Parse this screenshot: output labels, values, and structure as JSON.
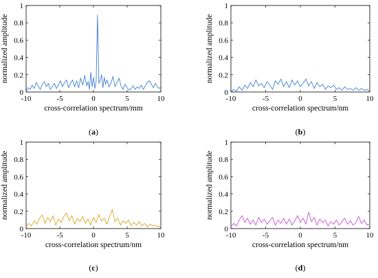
{
  "chart_data": [
    {
      "type": "line",
      "panel_label": {
        "open": "(",
        "letter": "a",
        "close": ")"
      },
      "xlabel": "cross-correlation spectrum/mm",
      "ylabel": "normalized amplitude",
      "xlim": [
        -10,
        10
      ],
      "ylim": [
        0,
        1
      ],
      "xticks": [
        -10,
        -5,
        0,
        5,
        10
      ],
      "xtick_labels": [
        "-10",
        "-5",
        "0",
        "5",
        "10"
      ],
      "yticks": [
        0,
        0.2,
        0.4,
        0.6,
        0.8,
        1
      ],
      "ytick_labels": [
        "0",
        "0.2",
        "0.4",
        "0.6",
        "0.8",
        "1"
      ],
      "grid": false,
      "color": "#3d7fd4",
      "series": [
        {
          "x": [
            -10,
            -9.7,
            -9.4,
            -9.1,
            -8.8,
            -8.5,
            -8.2,
            -7.9,
            -7.6,
            -7.3,
            -7.0,
            -6.7,
            -6.4,
            -6.1,
            -5.8,
            -5.5,
            -5.2,
            -4.9,
            -4.6,
            -4.3,
            -4.0,
            -3.7,
            -3.4,
            -3.1,
            -2.8,
            -2.5,
            -2.2,
            -1.9,
            -1.6,
            -1.3,
            -1.0,
            -0.8,
            -0.6,
            -0.4,
            -0.2,
            0.0,
            0.2,
            0.4,
            0.6,
            0.8,
            1.0,
            1.2,
            1.4,
            1.6,
            1.8,
            2.0,
            2.3,
            2.6,
            2.9,
            3.2,
            3.5,
            3.8,
            4.1,
            4.4,
            4.7,
            5.0,
            5.3,
            5.6,
            5.9,
            6.2,
            6.5,
            6.8,
            7.1,
            7.4,
            7.7,
            8.0,
            8.3,
            8.6,
            8.9,
            9.2,
            9.5,
            9.8,
            10.0
          ],
          "y": [
            0.01,
            0.05,
            0.03,
            0.08,
            0.04,
            0.11,
            0.07,
            0.03,
            0.09,
            0.12,
            0.06,
            0.1,
            0.03,
            0.06,
            0.1,
            0.04,
            0.08,
            0.13,
            0.06,
            0.11,
            0.14,
            0.05,
            0.1,
            0.14,
            0.06,
            0.13,
            0.05,
            0.16,
            0.08,
            0.19,
            0.07,
            0.12,
            0.03,
            0.23,
            0.06,
            0.17,
            0.04,
            0.13,
            0.89,
            0.1,
            0.14,
            0.2,
            0.05,
            0.17,
            0.09,
            0.14,
            0.06,
            0.1,
            0.18,
            0.06,
            0.11,
            0.16,
            0.07,
            0.03,
            0.09,
            0.05,
            0.02,
            0.04,
            0.07,
            0.03,
            0.06,
            0.04,
            0.08,
            0.03,
            0.07,
            0.11,
            0.13,
            0.09,
            0.05,
            0.1,
            0.06,
            0.04,
            0.06
          ]
        }
      ]
    },
    {
      "type": "line",
      "panel_label": {
        "open": "(",
        "letter": "b",
        "close": ")"
      },
      "xlabel": "cross-correlation spectrum/nm",
      "ylabel": "normalized amplitude",
      "xlim": [
        -10,
        10
      ],
      "ylim": [
        0,
        1
      ],
      "xticks": [
        -10,
        -5,
        0,
        5,
        10
      ],
      "xtick_labels": [
        "-10",
        "-5",
        "0",
        "5",
        "10"
      ],
      "yticks": [
        0,
        0.2,
        0.4,
        0.6,
        0.8,
        1
      ],
      "ytick_labels": [
        "0",
        "0.2",
        "0.4",
        "0.6",
        "0.8",
        "1"
      ],
      "grid": false,
      "color": "#3d7fd4",
      "series": [
        {
          "x": [
            -10,
            -9.6,
            -9.2,
            -8.8,
            -8.4,
            -8.0,
            -7.6,
            -7.2,
            -6.8,
            -6.4,
            -6.0,
            -5.6,
            -5.2,
            -4.8,
            -4.4,
            -4.0,
            -3.6,
            -3.2,
            -2.8,
            -2.4,
            -2.0,
            -1.6,
            -1.2,
            -0.8,
            -0.4,
            0.0,
            0.4,
            0.8,
            1.2,
            1.6,
            2.0,
            2.4,
            2.8,
            3.2,
            3.6,
            4.0,
            4.4,
            4.8,
            5.2,
            5.6,
            6.0,
            6.4,
            6.8,
            7.2,
            7.6,
            8.0,
            8.4,
            8.8,
            9.2,
            9.6,
            10.0
          ],
          "y": [
            0.0,
            0.03,
            0.01,
            0.06,
            0.02,
            0.08,
            0.04,
            0.11,
            0.06,
            0.14,
            0.07,
            0.1,
            0.05,
            0.12,
            0.08,
            0.03,
            0.13,
            0.09,
            0.15,
            0.06,
            0.12,
            0.05,
            0.14,
            0.08,
            0.13,
            0.06,
            0.1,
            0.15,
            0.07,
            0.12,
            0.04,
            0.11,
            0.06,
            0.09,
            0.03,
            0.07,
            0.05,
            0.08,
            0.03,
            0.05,
            0.02,
            0.06,
            0.03,
            0.04,
            0.02,
            0.05,
            0.02,
            0.04,
            0.02,
            0.03,
            0.01
          ]
        }
      ]
    },
    {
      "type": "line",
      "panel_label": {
        "open": "(",
        "letter": "c",
        "close": ")"
      },
      "xlabel": "cross-correlation spectrum/nm",
      "ylabel": "normalized amplitude",
      "xlim": [
        -10,
        10
      ],
      "ylim": [
        0,
        1
      ],
      "xticks": [
        -10,
        -5,
        0,
        5,
        10
      ],
      "xtick_labels": [
        "-10",
        "-5",
        "0",
        "5",
        "10"
      ],
      "yticks": [
        0,
        0.2,
        0.4,
        0.6,
        0.8,
        1
      ],
      "ytick_labels": [
        "0",
        "0.2",
        "0.4",
        "0.6",
        "0.8",
        "1"
      ],
      "grid": false,
      "color": "#d9a520",
      "series": [
        {
          "x": [
            -10,
            -9.6,
            -9.2,
            -8.8,
            -8.4,
            -8.0,
            -7.6,
            -7.2,
            -6.8,
            -6.4,
            -6.0,
            -5.6,
            -5.2,
            -4.8,
            -4.4,
            -4.0,
            -3.6,
            -3.2,
            -2.8,
            -2.4,
            -2.0,
            -1.6,
            -1.2,
            -0.8,
            -0.4,
            0.0,
            0.4,
            0.8,
            1.2,
            1.6,
            2.0,
            2.4,
            2.8,
            3.2,
            3.6,
            4.0,
            4.4,
            4.8,
            5.2,
            5.6,
            6.0,
            6.4,
            6.8,
            7.2,
            7.6,
            8.0,
            8.4,
            8.8,
            9.2,
            9.6,
            10.0
          ],
          "y": [
            0.02,
            0.06,
            0.03,
            0.09,
            0.05,
            0.12,
            0.16,
            0.06,
            0.13,
            0.08,
            0.15,
            0.04,
            0.11,
            0.07,
            0.14,
            0.18,
            0.09,
            0.15,
            0.05,
            0.12,
            0.08,
            0.14,
            0.06,
            0.11,
            0.04,
            0.13,
            0.07,
            0.16,
            0.09,
            0.12,
            0.05,
            0.14,
            0.22,
            0.08,
            0.12,
            0.04,
            0.09,
            0.06,
            0.1,
            0.03,
            0.07,
            0.04,
            0.08,
            0.03,
            0.06,
            0.02,
            0.05,
            0.03,
            0.04,
            0.02,
            0.03
          ]
        }
      ]
    },
    {
      "type": "line",
      "panel_label": {
        "open": "(",
        "letter": "d",
        "close": ")"
      },
      "xlabel": "cross-correlation spectrum/nm",
      "ylabel": "normalized amplitude",
      "xlim": [
        -10,
        10
      ],
      "ylim": [
        0,
        1
      ],
      "xticks": [
        -10,
        -5,
        0,
        5,
        10
      ],
      "xtick_labels": [
        "-10",
        "-5",
        "0",
        "5",
        "10"
      ],
      "yticks": [
        0,
        0.2,
        0.4,
        0.6,
        0.8,
        1
      ],
      "ytick_labels": [
        "0",
        "0.2",
        "0.4",
        "0.6",
        "0.8",
        "1"
      ],
      "grid": false,
      "color": "#c84fd8",
      "series": [
        {
          "x": [
            -10,
            -9.6,
            -9.2,
            -8.8,
            -8.4,
            -8.0,
            -7.6,
            -7.2,
            -6.8,
            -6.4,
            -6.0,
            -5.6,
            -5.2,
            -4.8,
            -4.4,
            -4.0,
            -3.6,
            -3.2,
            -2.8,
            -2.4,
            -2.0,
            -1.6,
            -1.2,
            -0.8,
            -0.4,
            0.0,
            0.4,
            0.8,
            1.2,
            1.6,
            2.0,
            2.4,
            2.8,
            3.2,
            3.6,
            4.0,
            4.4,
            4.8,
            5.2,
            5.6,
            6.0,
            6.4,
            6.8,
            7.2,
            7.6,
            8.0,
            8.4,
            8.8,
            9.2,
            9.6,
            10.0
          ],
          "y": [
            0.02,
            0.06,
            0.03,
            0.1,
            0.15,
            0.07,
            0.12,
            0.05,
            0.1,
            0.04,
            0.13,
            0.07,
            0.11,
            0.05,
            0.09,
            0.13,
            0.04,
            0.1,
            0.06,
            0.12,
            0.05,
            0.11,
            0.04,
            0.09,
            0.15,
            0.07,
            0.12,
            0.05,
            0.19,
            0.08,
            0.13,
            0.04,
            0.11,
            0.07,
            0.1,
            0.03,
            0.08,
            0.05,
            0.1,
            0.04,
            0.08,
            0.12,
            0.05,
            0.09,
            0.04,
            0.07,
            0.14,
            0.06,
            0.1,
            0.04,
            0.05
          ]
        }
      ]
    }
  ]
}
